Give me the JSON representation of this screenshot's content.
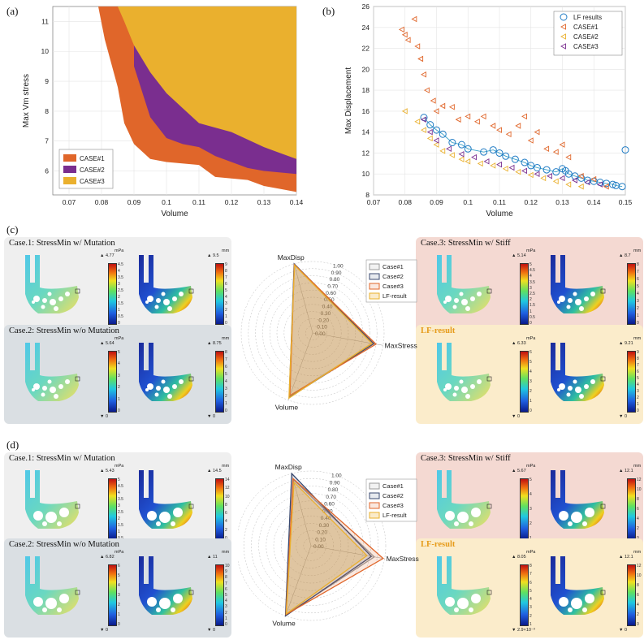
{
  "panel_labels": {
    "a": "(a)",
    "b": "(b)",
    "c": "(c)",
    "d": "(d)"
  },
  "colors": {
    "case1": "#e0662a",
    "case2": "#7a2e8f",
    "case3": "#eab02e",
    "lf": "#1f7bc4"
  },
  "chart_data": [
    {
      "type": "area",
      "id": "a",
      "xlabel": "Volume",
      "ylabel": "Max Vm stress",
      "xlim": [
        0.065,
        0.14
      ],
      "ylim": [
        5.2,
        11.5
      ],
      "xticks": [
        "0.07",
        "0.08",
        "0.09",
        "0.1",
        "0.11",
        "0.12",
        "0.13",
        "0.14"
      ],
      "yticks": [
        "6",
        "7",
        "8",
        "9",
        "10",
        "11"
      ],
      "grid": true,
      "legend_position": "bottom-left",
      "series": [
        {
          "name": "CASE#1",
          "lower": [
            [
              0.079,
              11.5
            ],
            [
              0.081,
              10.4
            ],
            [
              0.083,
              9.6
            ],
            [
              0.085,
              8.8
            ],
            [
              0.087,
              7.6
            ],
            [
              0.09,
              6.9
            ],
            [
              0.095,
              6.4
            ],
            [
              0.1,
              6.3
            ],
            [
              0.11,
              6.2
            ],
            [
              0.115,
              5.8
            ],
            [
              0.125,
              5.7
            ],
            [
              0.13,
              5.5
            ],
            [
              0.135,
              5.4
            ],
            [
              0.14,
              5.3
            ]
          ]
        },
        {
          "name": "CASE#2",
          "lower": [
            [
              0.09,
              9.5
            ],
            [
              0.095,
              7.8
            ],
            [
              0.1,
              7.1
            ],
            [
              0.105,
              6.9
            ],
            [
              0.11,
              6.8
            ],
            [
              0.115,
              6.5
            ],
            [
              0.12,
              6.3
            ],
            [
              0.125,
              6.1
            ],
            [
              0.13,
              6.0
            ],
            [
              0.14,
              5.9
            ]
          ]
        },
        {
          "name": "CASE#3",
          "lower": [
            [
              0.085,
              11.5
            ],
            [
              0.087,
              11.0
            ],
            [
              0.09,
              10.2
            ],
            [
              0.095,
              9.3
            ],
            [
              0.1,
              8.6
            ],
            [
              0.105,
              8.1
            ],
            [
              0.11,
              7.6
            ],
            [
              0.12,
              7.3
            ],
            [
              0.13,
              6.8
            ],
            [
              0.135,
              6.6
            ],
            [
              0.14,
              6.4
            ]
          ]
        }
      ]
    },
    {
      "type": "scatter",
      "id": "b",
      "xlabel": "Volume",
      "ylabel": "Max Displacement",
      "xlim": [
        0.07,
        0.15
      ],
      "ylim": [
        8,
        26
      ],
      "xticks": [
        "0.07",
        "0.08",
        "0.09",
        "0.1",
        "0.11",
        "0.12",
        "0.13",
        "0.14",
        "0.15"
      ],
      "yticks": [
        "8",
        "10",
        "12",
        "14",
        "16",
        "18",
        "20",
        "22",
        "24",
        "26"
      ],
      "grid": true,
      "legend_position": "top-right",
      "series": [
        {
          "name": "LF results",
          "marker": "circle",
          "points": [
            [
              0.086,
              15.4
            ],
            [
              0.088,
              14.7
            ],
            [
              0.09,
              14.2
            ],
            [
              0.092,
              13.8
            ],
            [
              0.095,
              13.0
            ],
            [
              0.098,
              12.8
            ],
            [
              0.1,
              12.4
            ],
            [
              0.105,
              12.1
            ],
            [
              0.108,
              12.3
            ],
            [
              0.11,
              12.0
            ],
            [
              0.112,
              11.7
            ],
            [
              0.115,
              11.4
            ],
            [
              0.118,
              11.1
            ],
            [
              0.12,
              10.8
            ],
            [
              0.122,
              10.6
            ],
            [
              0.125,
              10.4
            ],
            [
              0.128,
              10.2
            ],
            [
              0.13,
              10.5
            ],
            [
              0.131,
              10.3
            ],
            [
              0.132,
              10.0
            ],
            [
              0.134,
              9.8
            ],
            [
              0.136,
              9.6
            ],
            [
              0.138,
              9.4
            ],
            [
              0.14,
              9.3
            ],
            [
              0.142,
              9.2
            ],
            [
              0.144,
              9.1
            ],
            [
              0.146,
              9.0
            ],
            [
              0.147,
              8.9
            ],
            [
              0.149,
              8.8
            ],
            [
              0.15,
              12.3
            ]
          ]
        },
        {
          "name": "CASE#1",
          "marker": "triangle-left",
          "points": [
            [
              0.079,
              23.8
            ],
            [
              0.08,
              23.3
            ],
            [
              0.081,
              22.8
            ],
            [
              0.083,
              24.8
            ],
            [
              0.084,
              22.2
            ],
            [
              0.085,
              21.0
            ],
            [
              0.086,
              19.5
            ],
            [
              0.087,
              18.0
            ],
            [
              0.089,
              17.0
            ],
            [
              0.09,
              16.0
            ],
            [
              0.092,
              16.5
            ],
            [
              0.095,
              16.4
            ],
            [
              0.097,
              15.2
            ],
            [
              0.1,
              15.5
            ],
            [
              0.103,
              15.0
            ],
            [
              0.105,
              15.5
            ],
            [
              0.108,
              14.6
            ],
            [
              0.11,
              14.2
            ],
            [
              0.113,
              13.8
            ],
            [
              0.116,
              14.6
            ],
            [
              0.118,
              15.5
            ],
            [
              0.12,
              13.2
            ],
            [
              0.122,
              14.0
            ],
            [
              0.125,
              12.4
            ],
            [
              0.128,
              12.1
            ],
            [
              0.13,
              12.8
            ],
            [
              0.132,
              11.6
            ],
            [
              0.136,
              9.8
            ],
            [
              0.14,
              9.5
            ],
            [
              0.144,
              8.8
            ]
          ]
        },
        {
          "name": "CASE#2",
          "marker": "triangle-left",
          "points": [
            [
              0.08,
              16.0
            ],
            [
              0.084,
              15.0
            ],
            [
              0.086,
              14.2
            ],
            [
              0.088,
              13.4
            ],
            [
              0.09,
              12.8
            ],
            [
              0.092,
              12.2
            ],
            [
              0.095,
              11.8
            ],
            [
              0.098,
              11.4
            ],
            [
              0.1,
              11.2
            ],
            [
              0.104,
              11.0
            ],
            [
              0.108,
              10.8
            ],
            [
              0.112,
              10.5
            ],
            [
              0.116,
              10.2
            ],
            [
              0.12,
              9.9
            ],
            [
              0.124,
              9.6
            ],
            [
              0.128,
              9.3
            ],
            [
              0.132,
              9.0
            ],
            [
              0.136,
              8.8
            ]
          ]
        },
        {
          "name": "CASE#3",
          "marker": "triangle-left",
          "points": [
            [
              0.086,
              15.2
            ],
            [
              0.088,
              14.0
            ],
            [
              0.09,
              13.2
            ],
            [
              0.094,
              12.4
            ],
            [
              0.098,
              11.9
            ],
            [
              0.102,
              11.6
            ],
            [
              0.106,
              11.2
            ],
            [
              0.11,
              10.9
            ],
            [
              0.114,
              10.6
            ],
            [
              0.118,
              10.3
            ],
            [
              0.122,
              10.0
            ],
            [
              0.126,
              9.8
            ],
            [
              0.13,
              9.6
            ],
            [
              0.134,
              9.4
            ],
            [
              0.138,
              9.2
            ],
            [
              0.142,
              9.0
            ]
          ]
        }
      ]
    },
    {
      "type": "radar",
      "id": "c",
      "axes": [
        "MaxDisp",
        "MaxStress",
        "Volume"
      ],
      "rticks": [
        "0.00",
        "0.10",
        "0.20",
        "0.30",
        "0.40",
        "0.50",
        "0.60",
        "0.70",
        "0.80",
        "0.90",
        "1.00"
      ],
      "legend_position": "top-right",
      "series": [
        {
          "name": "Case#1",
          "values": [
            1.0,
            0.86,
            0.94
          ]
        },
        {
          "name": "Case#2",
          "values": [
            1.0,
            0.87,
            0.96
          ]
        },
        {
          "name": "Case#3",
          "values": [
            0.99,
            0.9,
            0.93
          ]
        },
        {
          "name": "LF-result",
          "values": [
            0.98,
            0.84,
            0.97
          ]
        }
      ]
    },
    {
      "type": "radar",
      "id": "d",
      "axes": [
        "MaxDisp",
        "MaxStress",
        "Volume"
      ],
      "rticks": [
        "0.00",
        "0.10",
        "0.20",
        "0.30",
        "0.40",
        "0.50",
        "0.60",
        "0.70",
        "0.80",
        "0.90",
        "1.00"
      ],
      "legend_position": "top-right",
      "series": [
        {
          "name": "Case#1",
          "values": [
            0.92,
            0.86,
            0.98
          ]
        },
        {
          "name": "Case#2",
          "values": [
            1.0,
            0.82,
            1.0
          ]
        },
        {
          "name": "Case#3",
          "values": [
            0.93,
            0.98,
            0.98
          ]
        },
        {
          "name": "LF-result",
          "values": [
            0.88,
            0.76,
            0.97
          ]
        }
      ]
    }
  ],
  "panels_c": [
    {
      "title": "Case.1: StressMin w/ Mutation",
      "bg": "#efefef",
      "s_unit": "mPa",
      "s_max": "▲ 4.77",
      "s_min": "▼ 0",
      "s_ticks": [
        "4.5",
        "4",
        "3.5",
        "3",
        "2.5",
        "2",
        "1.5",
        "1",
        "0.5",
        "0"
      ],
      "d_unit": "mm",
      "d_max": "▲ 9.5",
      "d_min": "▼ 0",
      "d_ticks": [
        "9",
        "8",
        "7",
        "6",
        "5",
        "4",
        "3",
        "2",
        "1",
        "0"
      ]
    },
    {
      "title": "Case.2: StressMin w/o Mutation",
      "bg": "#dadfe3",
      "s_unit": "mPa",
      "s_max": "▲ 5.64",
      "s_min": "▼ 0",
      "s_ticks": [
        "5",
        "4",
        "3",
        "2",
        "1",
        "0"
      ],
      "d_unit": "mm",
      "d_max": "▲ 8.75",
      "d_min": "▼ 0",
      "d_ticks": [
        "8",
        "7",
        "6",
        "5",
        "4",
        "3",
        "2",
        "1",
        "0"
      ]
    },
    {
      "title": "Case.3: StressMin w/ Stiff",
      "bg": "#f4d9d2",
      "s_unit": "mPa",
      "s_max": "▲ 5.14",
      "s_min": "▼ 0",
      "s_ticks": [
        "5",
        "4.5",
        "4",
        "3.5",
        "3",
        "2.5",
        "2",
        "1.5",
        "1",
        "0.5",
        "0"
      ],
      "d_unit": "mm",
      "d_max": "▲ 8.7",
      "d_min": "▼ 0",
      "d_ticks": [
        "8",
        "7",
        "6",
        "5",
        "4",
        "3",
        "2",
        "1",
        "0"
      ]
    },
    {
      "title": "LF-result",
      "bg": "#fbeccb",
      "s_unit": "mPa",
      "s_max": "▲ 6.33",
      "s_min": "▼ 0",
      "s_ticks": [
        "6",
        "5",
        "4",
        "3",
        "2",
        "1",
        "0"
      ],
      "d_unit": "mm",
      "d_max": "▲ 9.21",
      "d_min": "▼ 0",
      "d_ticks": [
        "9",
        "8",
        "7",
        "6",
        "5",
        "4",
        "3",
        "2",
        "1",
        "0"
      ]
    }
  ],
  "panels_d": [
    {
      "title": "Case.1: StressMin w/ Mutation",
      "bg": "#efefef",
      "s_unit": "mPa",
      "s_max": "▲ 5.43",
      "s_min": "▼ 0.109",
      "s_ticks": [
        "5",
        "4.5",
        "4",
        "3.5",
        "3",
        "2.5",
        "2",
        "1.5",
        "1",
        "0.5"
      ],
      "d_unit": "mm",
      "d_max": "▲ 14.5",
      "d_min": "▼ 0",
      "d_ticks": [
        "14",
        "12",
        "10",
        "8",
        "6",
        "4",
        "2",
        "0"
      ]
    },
    {
      "title": "Case.2: StressMin w/o Mutation",
      "bg": "#dadfe3",
      "s_unit": "mPa",
      "s_max": "▲ 6.82",
      "s_min": "▼ 0",
      "s_ticks": [
        "6",
        "5",
        "4",
        "3",
        "2",
        "1",
        "0"
      ],
      "d_unit": "mm",
      "d_max": "▲ 11",
      "d_min": "▼ 0",
      "d_ticks": [
        "10",
        "9",
        "8",
        "7",
        "6",
        "5",
        "4",
        "3",
        "2",
        "1",
        "0"
      ]
    },
    {
      "title": "Case.3: StressMin w/ Stiff",
      "bg": "#f4d9d2",
      "s_unit": "mPa",
      "s_max": "▲ 5.67",
      "s_min": "▼ 4.1×10⁻³",
      "s_ticks": [
        "5",
        "4",
        "3",
        "2",
        "1"
      ],
      "d_unit": "mm",
      "d_max": "▲ 12.1",
      "d_min": "▼ 0",
      "d_ticks": [
        "12",
        "10",
        "8",
        "6",
        "4",
        "2",
        "0"
      ]
    },
    {
      "title": "LF-result",
      "bg": "#fbeccb",
      "s_unit": "mPa",
      "s_max": "▲ 8.05",
      "s_min": "▼ 2.9×10⁻³",
      "s_ticks": [
        "8",
        "7",
        "6",
        "5",
        "4",
        "3",
        "2",
        "1"
      ],
      "d_unit": "mm",
      "d_max": "▲ 12.1",
      "d_min": "▼ 0",
      "d_ticks": [
        "12",
        "10",
        "8",
        "6",
        "4",
        "2",
        "0"
      ]
    }
  ]
}
